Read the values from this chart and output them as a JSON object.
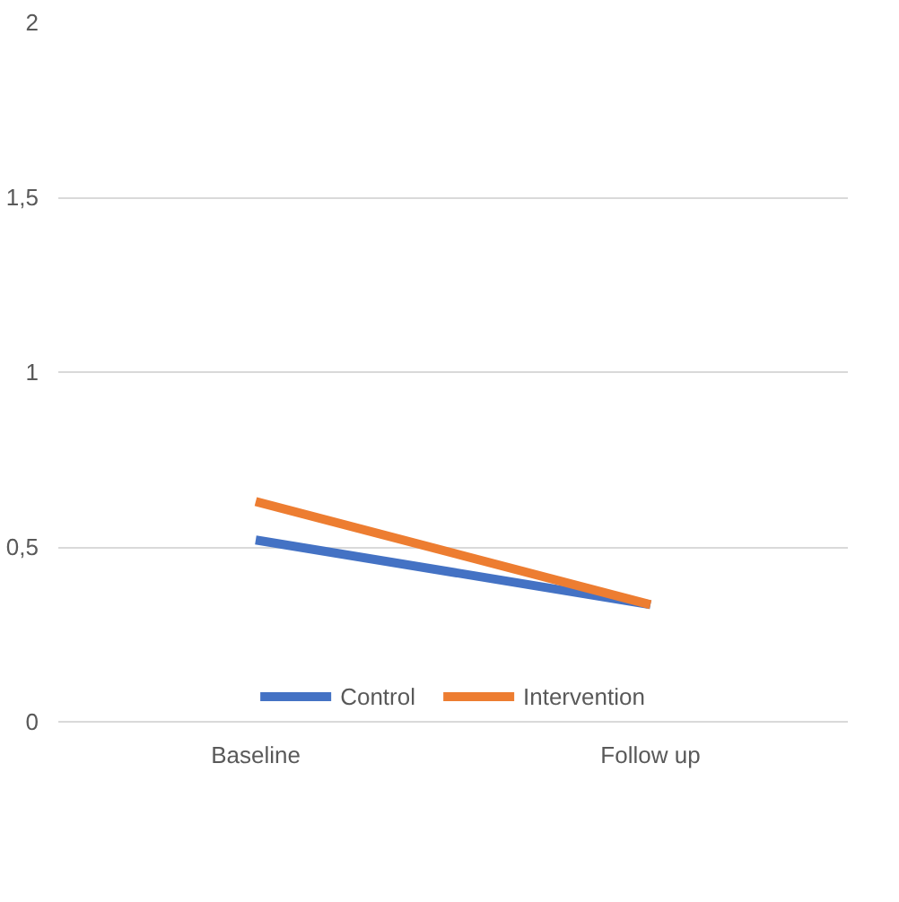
{
  "chart_data": {
    "type": "line",
    "categories": [
      "Baseline",
      "Follow up"
    ],
    "series": [
      {
        "name": "Control",
        "color": "#4472c4",
        "values": [
          0.52,
          0.335
        ]
      },
      {
        "name": "Intervention",
        "color": "#ed7d31",
        "values": [
          0.63,
          0.335
        ]
      }
    ],
    "ylim": [
      0,
      2
    ],
    "yticks": [
      0,
      {
        "value": 0.5,
        "label": "0,5"
      },
      1,
      {
        "value": 1.5,
        "label": "1,5"
      },
      2
    ],
    "grid": "y",
    "legend": "bottom",
    "marker": "none",
    "line_style": "solid"
  }
}
